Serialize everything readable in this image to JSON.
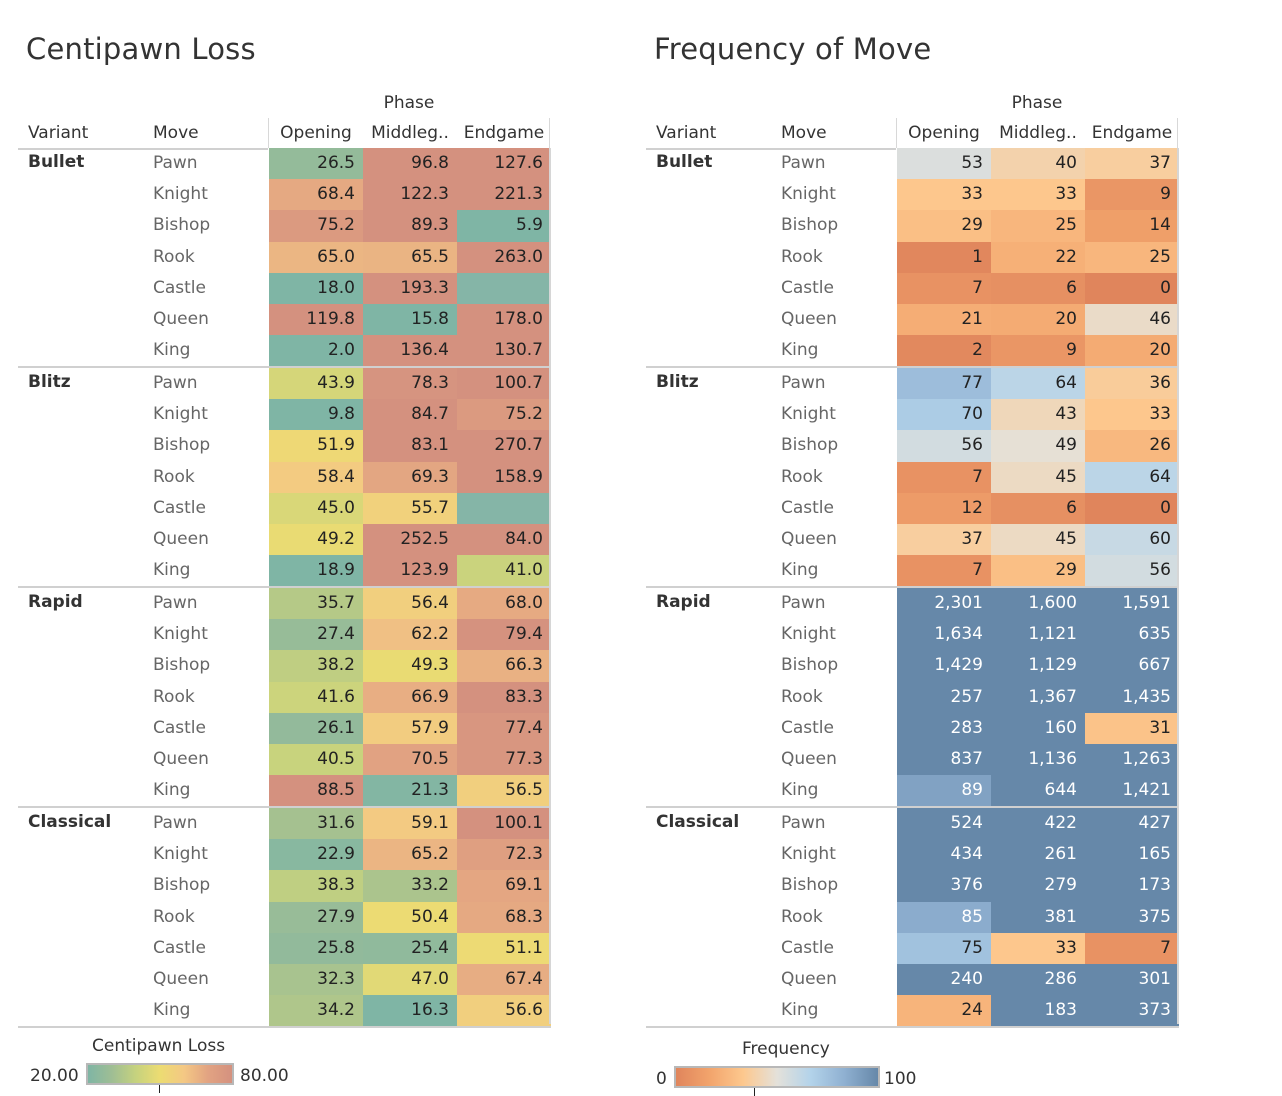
{
  "chart_data": [
    {
      "type": "heatmap",
      "title": "Centipawn Loss",
      "column_group_label": "Phase",
      "row_headers": [
        "Variant",
        "Move"
      ],
      "columns": [
        "Opening",
        "Middleg..",
        "Endgame"
      ],
      "groups": [
        {
          "variant": "Bullet",
          "rows": [
            {
              "move": "Pawn",
              "values": [
                26.5,
                96.8,
                127.6
              ]
            },
            {
              "move": "Knight",
              "values": [
                68.4,
                122.3,
                221.3
              ]
            },
            {
              "move": "Bishop",
              "values": [
                75.2,
                89.3,
                5.9
              ]
            },
            {
              "move": "Rook",
              "values": [
                65.0,
                65.5,
                263.0
              ]
            },
            {
              "move": "Castle",
              "values": [
                18.0,
                193.3,
                null
              ]
            },
            {
              "move": "Queen",
              "values": [
                119.8,
                15.8,
                178.0
              ]
            },
            {
              "move": "King",
              "values": [
                2.0,
                136.4,
                130.7
              ]
            }
          ]
        },
        {
          "variant": "Blitz",
          "rows": [
            {
              "move": "Pawn",
              "values": [
                43.9,
                78.3,
                100.7
              ]
            },
            {
              "move": "Knight",
              "values": [
                9.8,
                84.7,
                75.2
              ]
            },
            {
              "move": "Bishop",
              "values": [
                51.9,
                83.1,
                270.7
              ]
            },
            {
              "move": "Rook",
              "values": [
                58.4,
                69.3,
                158.9
              ]
            },
            {
              "move": "Castle",
              "values": [
                45.0,
                55.7,
                null
              ]
            },
            {
              "move": "Queen",
              "values": [
                49.2,
                252.5,
                84.0
              ]
            },
            {
              "move": "King",
              "values": [
                18.9,
                123.9,
                41.0
              ]
            }
          ]
        },
        {
          "variant": "Rapid",
          "rows": [
            {
              "move": "Pawn",
              "values": [
                35.7,
                56.4,
                68.0
              ]
            },
            {
              "move": "Knight",
              "values": [
                27.4,
                62.2,
                79.4
              ]
            },
            {
              "move": "Bishop",
              "values": [
                38.2,
                49.3,
                66.3
              ]
            },
            {
              "move": "Rook",
              "values": [
                41.6,
                66.9,
                83.3
              ]
            },
            {
              "move": "Castle",
              "values": [
                26.1,
                57.9,
                77.4
              ]
            },
            {
              "move": "Queen",
              "values": [
                40.5,
                70.5,
                77.3
              ]
            },
            {
              "move": "King",
              "values": [
                88.5,
                21.3,
                56.5
              ]
            }
          ]
        },
        {
          "variant": "Classical",
          "rows": [
            {
              "move": "Pawn",
              "values": [
                31.6,
                59.1,
                100.1
              ]
            },
            {
              "move": "Knight",
              "values": [
                22.9,
                65.2,
                72.3
              ]
            },
            {
              "move": "Bishop",
              "values": [
                38.3,
                33.2,
                69.1
              ]
            },
            {
              "move": "Rook",
              "values": [
                27.9,
                50.4,
                68.3
              ]
            },
            {
              "move": "Castle",
              "values": [
                25.8,
                25.4,
                51.1
              ]
            },
            {
              "move": "Queen",
              "values": [
                32.3,
                47.0,
                67.4
              ]
            },
            {
              "move": "King",
              "values": [
                34.2,
                16.3,
                56.6
              ]
            }
          ]
        }
      ],
      "legend": {
        "title": "Centipawn Loss",
        "min_label": "20.00",
        "max_label": "80.00",
        "range": [
          20,
          80
        ],
        "placement": "bottom-left",
        "colors": [
          "#6fa08a",
          "#e6d25e",
          "#d58a6a"
        ]
      },
      "number_format": "0.0"
    },
    {
      "type": "heatmap",
      "title": "Frequency of Move",
      "column_group_label": "Phase",
      "row_headers": [
        "Variant",
        "Move"
      ],
      "columns": [
        "Opening",
        "Middleg..",
        "Endgame"
      ],
      "groups": [
        {
          "variant": "Bullet",
          "rows": [
            {
              "move": "Pawn",
              "values": [
                53,
                40,
                37
              ]
            },
            {
              "move": "Knight",
              "values": [
                33,
                33,
                9
              ]
            },
            {
              "move": "Bishop",
              "values": [
                29,
                25,
                14
              ]
            },
            {
              "move": "Rook",
              "values": [
                1,
                22,
                25
              ]
            },
            {
              "move": "Castle",
              "values": [
                7,
                6,
                0
              ]
            },
            {
              "move": "Queen",
              "values": [
                21,
                20,
                46
              ]
            },
            {
              "move": "King",
              "values": [
                2,
                9,
                20
              ]
            }
          ]
        },
        {
          "variant": "Blitz",
          "rows": [
            {
              "move": "Pawn",
              "values": [
                77,
                64,
                36
              ]
            },
            {
              "move": "Knight",
              "values": [
                70,
                43,
                33
              ]
            },
            {
              "move": "Bishop",
              "values": [
                56,
                49,
                26
              ]
            },
            {
              "move": "Rook",
              "values": [
                7,
                45,
                64
              ]
            },
            {
              "move": "Castle",
              "values": [
                12,
                6,
                0
              ]
            },
            {
              "move": "Queen",
              "values": [
                37,
                45,
                60
              ]
            },
            {
              "move": "King",
              "values": [
                7,
                29,
                56
              ]
            }
          ]
        },
        {
          "variant": "Rapid",
          "rows": [
            {
              "move": "Pawn",
              "values": [
                2301,
                1600,
                1591
              ]
            },
            {
              "move": "Knight",
              "values": [
                1634,
                1121,
                635
              ]
            },
            {
              "move": "Bishop",
              "values": [
                1429,
                1129,
                667
              ]
            },
            {
              "move": "Rook",
              "values": [
                257,
                1367,
                1435
              ]
            },
            {
              "move": "Castle",
              "values": [
                283,
                160,
                31
              ]
            },
            {
              "move": "Queen",
              "values": [
                837,
                1136,
                1263
              ]
            },
            {
              "move": "King",
              "values": [
                89,
                644,
                1421
              ]
            }
          ]
        },
        {
          "variant": "Classical",
          "rows": [
            {
              "move": "Pawn",
              "values": [
                524,
                422,
                427
              ]
            },
            {
              "move": "Knight",
              "values": [
                434,
                261,
                165
              ]
            },
            {
              "move": "Bishop",
              "values": [
                376,
                279,
                173
              ]
            },
            {
              "move": "Rook",
              "values": [
                85,
                381,
                375
              ]
            },
            {
              "move": "Castle",
              "values": [
                75,
                33,
                7
              ]
            },
            {
              "move": "Queen",
              "values": [
                240,
                286,
                301
              ]
            },
            {
              "move": "King",
              "values": [
                24,
                183,
                373
              ]
            }
          ]
        }
      ],
      "legend": {
        "title": "Frequency",
        "min_label": "0",
        "max_label": "100",
        "range": [
          0,
          100
        ],
        "placement": "bottom-left",
        "colors": [
          "#e07a4a",
          "#fdc98a",
          "#e4e2dc",
          "#a9cde8",
          "#4d7396"
        ]
      },
      "number_format": "#,##0"
    }
  ]
}
